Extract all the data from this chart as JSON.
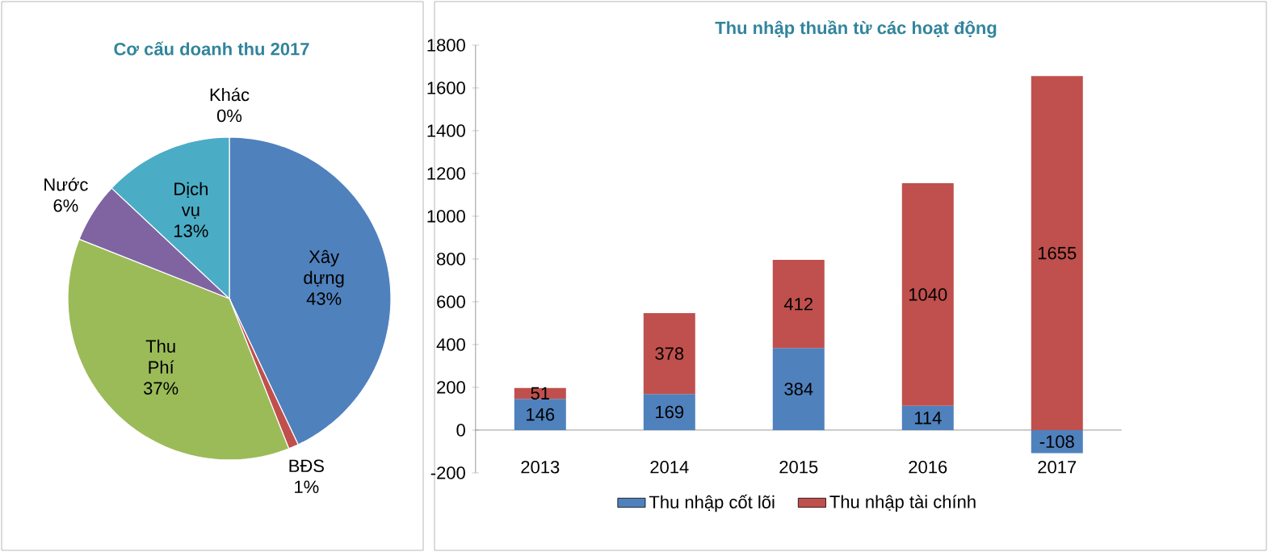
{
  "chart_data": [
    {
      "type": "pie",
      "title": "Cơ cấu doanh thu 2017",
      "categories": [
        "Xây dựng",
        "BĐS",
        "Thu Phí",
        "Nước",
        "Dịch vụ",
        "Khác"
      ],
      "values": [
        43,
        1,
        37,
        6,
        13,
        0
      ],
      "value_labels": [
        "43%",
        "1%",
        "37%",
        "6%",
        "13%",
        "0%"
      ],
      "colors": [
        "#4f81bd",
        "#c0504d",
        "#9bbb59",
        "#8064a2",
        "#4bacc6",
        "#f79646"
      ]
    },
    {
      "type": "bar",
      "title": "Thu nhập thuần từ các hoạt động",
      "stacked": true,
      "categories": [
        "2013",
        "2014",
        "2015",
        "2016",
        "2017"
      ],
      "series": [
        {
          "name": "Thu nhập cốt lõi",
          "color": "#4f81bd",
          "values": [
            146,
            169,
            384,
            114,
            -108
          ]
        },
        {
          "name": "Thu nhập tài chính",
          "color": "#c0504d",
          "values": [
            51,
            378,
            412,
            1040,
            1655
          ]
        }
      ],
      "ylim": [
        -200,
        1800
      ],
      "yticks": [
        -200,
        0,
        200,
        400,
        600,
        800,
        1000,
        1200,
        1400,
        1600,
        1800
      ],
      "data_labels": true,
      "legend": "bottom"
    }
  ]
}
